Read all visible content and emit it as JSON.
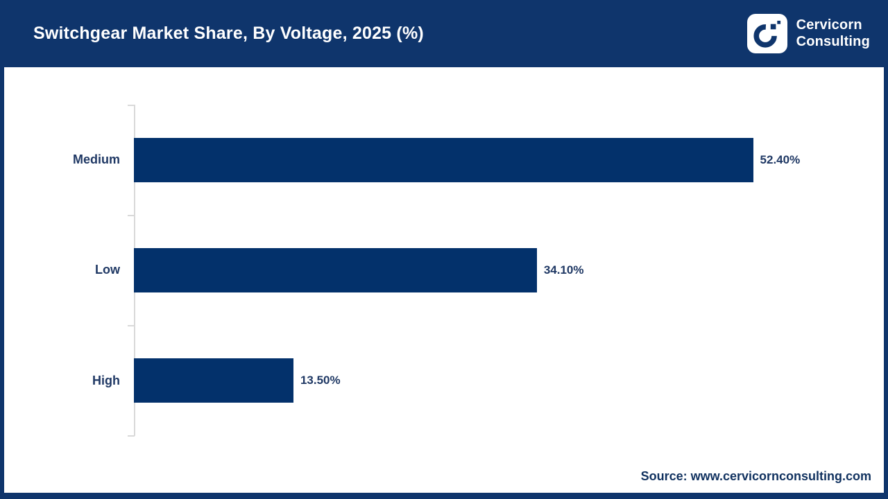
{
  "header": {
    "title": "Switchgear Market Share, By Voltage, 2025 (%)",
    "brand": {
      "line1": "Cervicorn",
      "line2": "Consulting"
    }
  },
  "chart_data": {
    "type": "bar",
    "orientation": "horizontal",
    "title": "Switchgear Market Share, By Voltage, 2025 (%)",
    "categories": [
      "Medium",
      "Low",
      "High"
    ],
    "values": [
      52.4,
      34.1,
      13.5
    ],
    "value_labels": [
      "52.40%",
      "34.10%",
      "13.50%"
    ],
    "xlabel": "",
    "ylabel": "",
    "xlim": [
      0,
      60
    ],
    "grid": false,
    "legend": false,
    "bar_color": "#03316b",
    "axis_color": "#d9d9d9",
    "label_color": "#1f3864"
  },
  "footer": {
    "source": "Source: www.cervicornconsulting.com"
  },
  "colors": {
    "brand_navy": "#0f356c",
    "bar_navy": "#03316b",
    "text_navy": "#1f3864",
    "axis_gray": "#d9d9d9"
  }
}
